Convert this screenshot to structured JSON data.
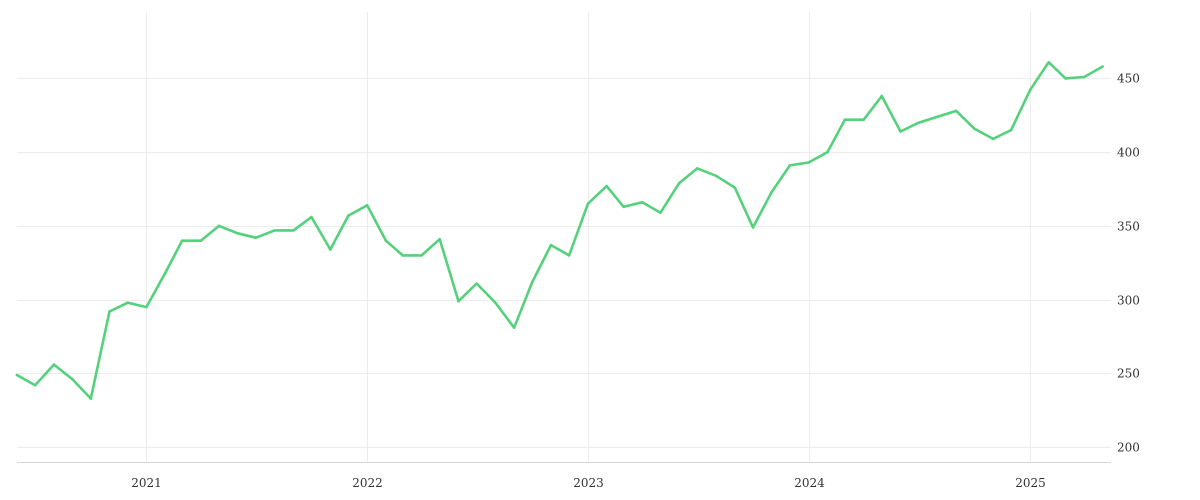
{
  "chart_data": {
    "type": "line",
    "title": "",
    "xlabel": "",
    "ylabel": "",
    "grid": true,
    "y_axis_side": "right",
    "ylim": [
      190,
      495
    ],
    "xlim": [
      "2020-06-01",
      "2025-05-15"
    ],
    "x_ticks": [
      {
        "date": "2021-01-01",
        "label": "2021"
      },
      {
        "date": "2022-01-01",
        "label": "2022"
      },
      {
        "date": "2023-01-01",
        "label": "2023"
      },
      {
        "date": "2024-01-01",
        "label": "2024"
      },
      {
        "date": "2025-01-01",
        "label": "2025"
      }
    ],
    "y_ticks": [
      {
        "value": 200,
        "label": "200"
      },
      {
        "value": 250,
        "label": "250"
      },
      {
        "value": 300,
        "label": "300"
      },
      {
        "value": 350,
        "label": "350"
      },
      {
        "value": 400,
        "label": "400"
      },
      {
        "value": 450,
        "label": "450"
      }
    ],
    "series": [
      {
        "color": "#55d17c",
        "points": [
          [
            "2020-06-01",
            249
          ],
          [
            "2020-07-01",
            242
          ],
          [
            "2020-08-01",
            256
          ],
          [
            "2020-09-01",
            246
          ],
          [
            "2020-10-01",
            233
          ],
          [
            "2020-11-01",
            292
          ],
          [
            "2020-12-01",
            298
          ],
          [
            "2021-01-01",
            295
          ],
          [
            "2021-02-01",
            318
          ],
          [
            "2021-03-01",
            340
          ],
          [
            "2021-04-01",
            340
          ],
          [
            "2021-05-01",
            350
          ],
          [
            "2021-06-01",
            345
          ],
          [
            "2021-07-01",
            342
          ],
          [
            "2021-08-01",
            347
          ],
          [
            "2021-09-01",
            347
          ],
          [
            "2021-10-01",
            356
          ],
          [
            "2021-11-01",
            334
          ],
          [
            "2021-12-01",
            357
          ],
          [
            "2022-01-01",
            364
          ],
          [
            "2022-02-01",
            340
          ],
          [
            "2022-03-01",
            330
          ],
          [
            "2022-04-01",
            330
          ],
          [
            "2022-05-01",
            341
          ],
          [
            "2022-06-01",
            299
          ],
          [
            "2022-07-01",
            311
          ],
          [
            "2022-08-01",
            298
          ],
          [
            "2022-09-01",
            281
          ],
          [
            "2022-10-01",
            312
          ],
          [
            "2022-11-01",
            337
          ],
          [
            "2022-12-01",
            330
          ],
          [
            "2023-01-01",
            365
          ],
          [
            "2023-02-01",
            377
          ],
          [
            "2023-03-01",
            363
          ],
          [
            "2023-04-01",
            366
          ],
          [
            "2023-05-01",
            359
          ],
          [
            "2023-06-01",
            379
          ],
          [
            "2023-07-01",
            389
          ],
          [
            "2023-08-01",
            384
          ],
          [
            "2023-09-01",
            376
          ],
          [
            "2023-10-01",
            349
          ],
          [
            "2023-11-01",
            373
          ],
          [
            "2023-12-01",
            391
          ],
          [
            "2024-01-01",
            393
          ],
          [
            "2024-02-01",
            400
          ],
          [
            "2024-03-01",
            422
          ],
          [
            "2024-04-01",
            422
          ],
          [
            "2024-05-01",
            438
          ],
          [
            "2024-06-01",
            414
          ],
          [
            "2024-07-01",
            420
          ],
          [
            "2024-08-01",
            424
          ],
          [
            "2024-09-01",
            428
          ],
          [
            "2024-10-01",
            416
          ],
          [
            "2024-11-01",
            409
          ],
          [
            "2024-12-01",
            415
          ],
          [
            "2025-01-01",
            442
          ],
          [
            "2025-02-01",
            461
          ],
          [
            "2025-03-01",
            450
          ],
          [
            "2025-04-01",
            451
          ],
          [
            "2025-05-01",
            458
          ]
        ]
      }
    ]
  }
}
